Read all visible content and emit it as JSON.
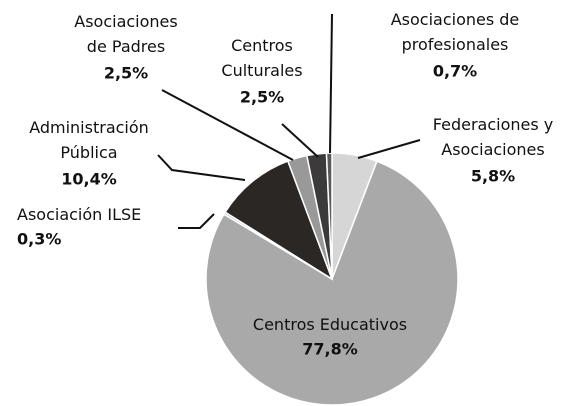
{
  "chart_data": {
    "type": "pie",
    "categories": [
      "Federaciones y\nAsociaciones",
      "Centros Educativos",
      "Asociación ILSE",
      "Administración\nPública",
      "Asociaciones\nde Padres",
      "Centros\nCulturales",
      "Asociaciones de\nprofesionales"
    ],
    "values": [
      5.8,
      77.8,
      0.3,
      10.4,
      2.5,
      2.5,
      0.7
    ],
    "value_labels": [
      "5,8%",
      "77,8%",
      "0,3%",
      "10,4%",
      "2,5%",
      "2,5%",
      "0,7%"
    ],
    "colors": [
      "#d6d6d6",
      "#a9a9a9",
      "#bdbdbd",
      "#2b2725",
      "#999999",
      "#3c3a3a",
      "#5a5a5a"
    ]
  }
}
